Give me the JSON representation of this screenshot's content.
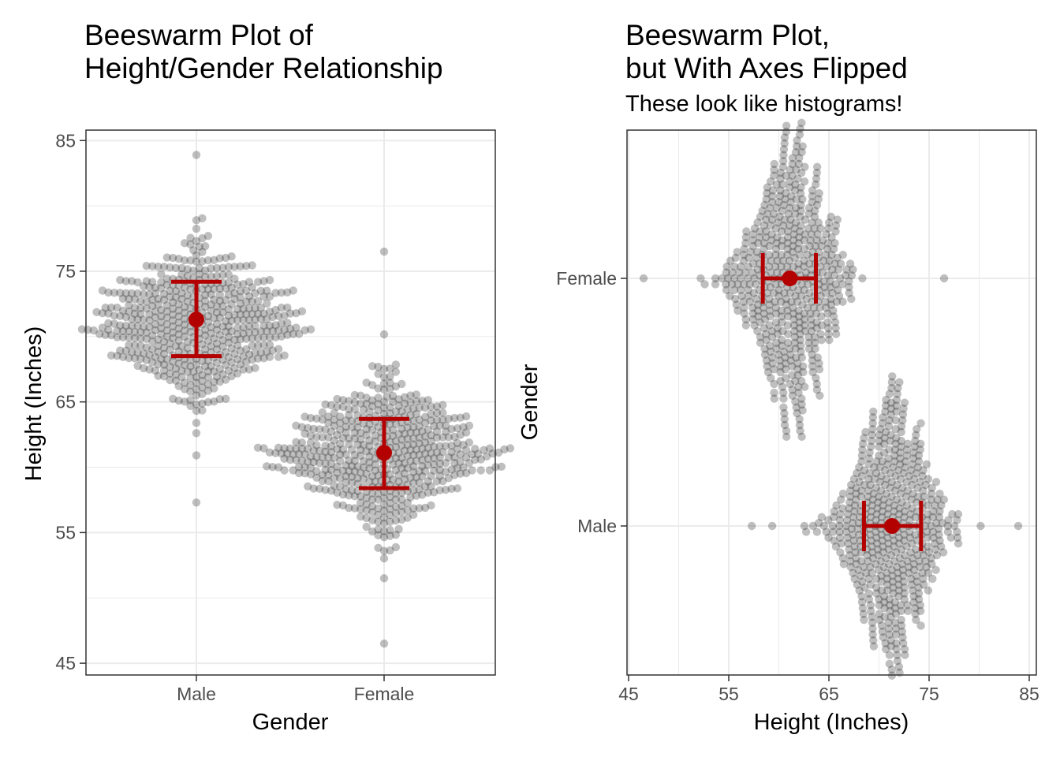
{
  "charts": {
    "left": {
      "title_line1": "Beeswarm Plot of",
      "title_line2": "Height/Gender Relationship",
      "xlabel": "Gender",
      "ylabel": "Height (Inches)"
    },
    "right": {
      "title_line1": "Beeswarm Plot,",
      "title_line2": "but With Axes Flipped",
      "subtitle": "These look like histograms!",
      "xlabel": "Height (Inches)",
      "ylabel": "Gender"
    }
  },
  "colors": {
    "points": "#000000",
    "summary": "#b30000",
    "grid": "#ebebeb",
    "panel_border": "#333333"
  },
  "chart_data": [
    {
      "type": "scatter",
      "subtype": "beeswarm",
      "title": "Beeswarm Plot of Height/Gender Relationship",
      "xlabel": "Gender",
      "ylabel": "Height (Inches)",
      "categories": [
        "Male",
        "Female"
      ],
      "ylim": [
        45,
        85
      ],
      "yticks": [
        45,
        55,
        65,
        75,
        85
      ],
      "grid": true,
      "summary": [
        {
          "category": "Male",
          "mean": 71.3,
          "lower": 68.5,
          "upper": 74.2
        },
        {
          "category": "Female",
          "mean": 61.1,
          "lower": 58.4,
          "upper": 63.7
        }
      ],
      "distribution": [
        {
          "category": "Male",
          "min": 57.3,
          "max": 83.9,
          "center": 71.0,
          "sd": 2.9
        },
        {
          "category": "Female",
          "min": 46.5,
          "max": 76.5,
          "center": 61.0,
          "sd": 2.8
        }
      ]
    },
    {
      "type": "scatter",
      "subtype": "beeswarm",
      "title": "Beeswarm Plot, but With Axes Flipped",
      "subtitle": "These look like histograms!",
      "xlabel": "Height (Inches)",
      "ylabel": "Gender",
      "categories": [
        "Male",
        "Female"
      ],
      "xlim": [
        45,
        85
      ],
      "xticks": [
        45,
        55,
        65,
        75,
        85
      ],
      "grid": true,
      "summary": [
        {
          "category": "Male",
          "mean": 71.3,
          "lower": 68.5,
          "upper": 74.2
        },
        {
          "category": "Female",
          "mean": 61.1,
          "lower": 58.4,
          "upper": 63.7
        }
      ],
      "distribution": [
        {
          "category": "Male",
          "min": 57.3,
          "max": 83.9,
          "center": 71.0,
          "sd": 2.9
        },
        {
          "category": "Female",
          "min": 46.5,
          "max": 76.5,
          "center": 61.0,
          "sd": 2.8
        }
      ]
    }
  ]
}
